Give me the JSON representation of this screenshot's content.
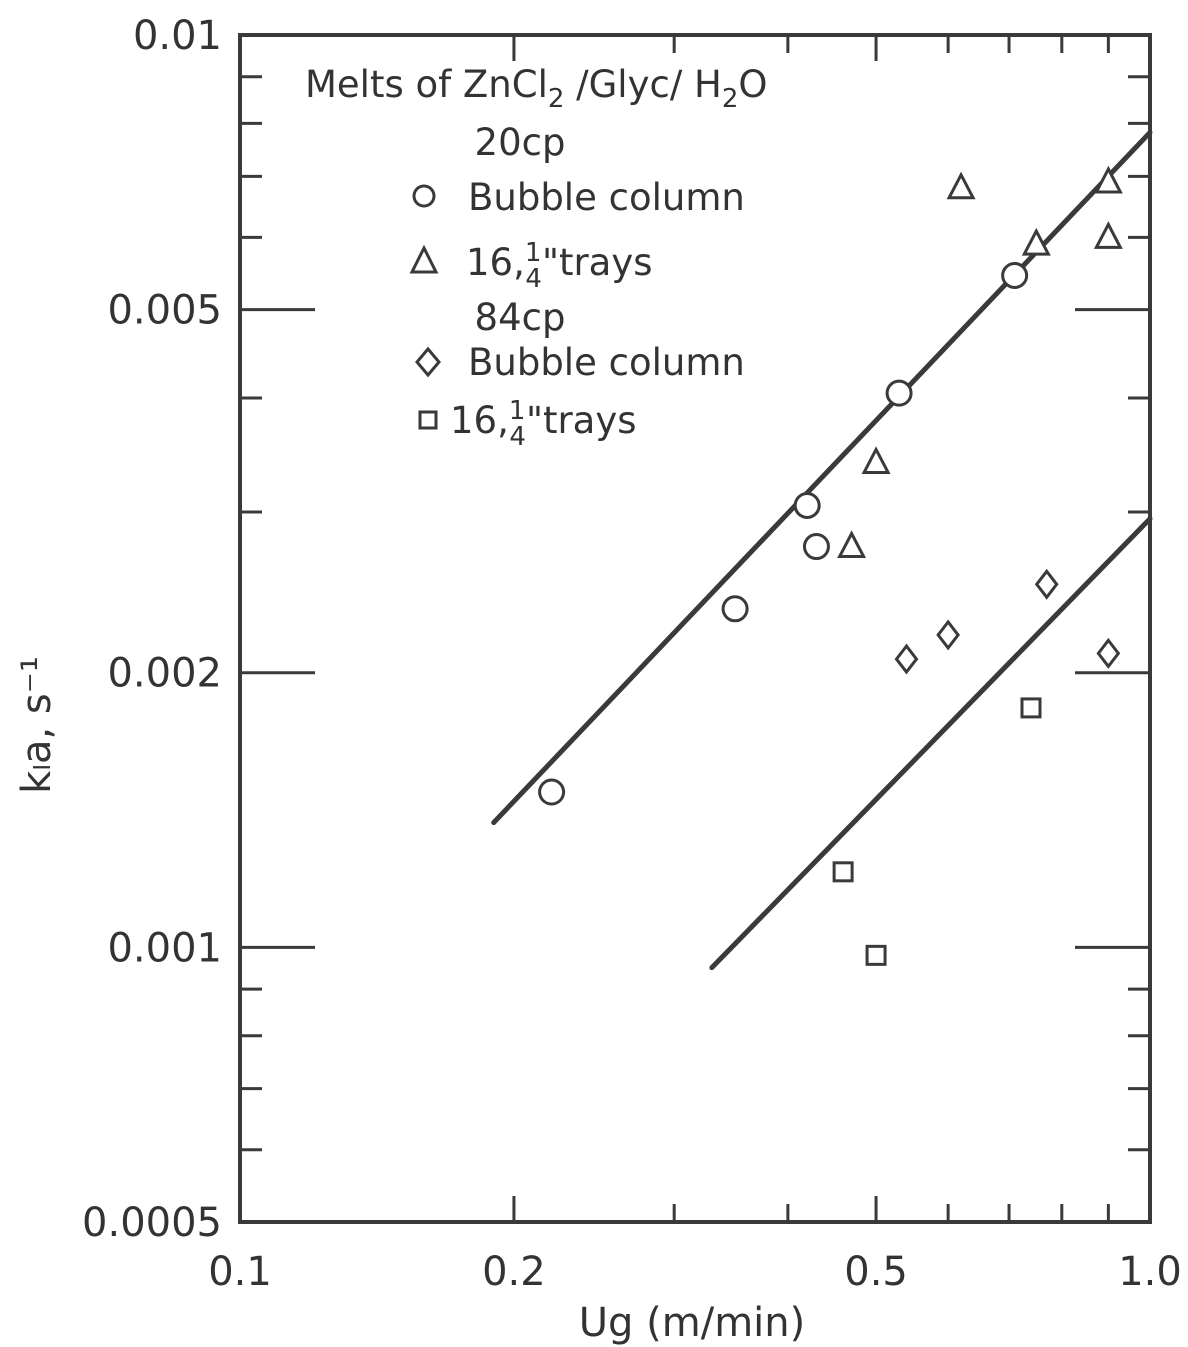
{
  "chart_data": {
    "type": "scatter",
    "title": "",
    "xlabel": "Ug (m/min)",
    "ylabel": "kₗa, s⁻¹",
    "xscale": "log",
    "yscale": "log",
    "xlim": [
      0.1,
      1.0
    ],
    "ylim": [
      0.0005,
      0.01
    ],
    "x_tick_labels": [
      {
        "value": 0.1,
        "label": "0.1"
      },
      {
        "value": 0.2,
        "label": "0.2"
      },
      {
        "value": 0.5,
        "label": "0.5"
      },
      {
        "value": 1.0,
        "label": "1.0"
      }
    ],
    "y_tick_labels": [
      {
        "value": 0.0005,
        "label": "0.0005"
      },
      {
        "value": 0.001,
        "label": "0.001"
      },
      {
        "value": 0.002,
        "label": "0.002"
      },
      {
        "value": 0.005,
        "label": "0.005"
      },
      {
        "value": 0.01,
        "label": "0.01"
      }
    ],
    "legend": {
      "placement": "top-left",
      "title_line1": "Melts of ZnCl",
      "title_sub1": "2",
      "title_line2": " /Glyc/ H",
      "title_sub2": "2",
      "title_line3": "O",
      "group1_label": "20cp",
      "group2_label": "84cp",
      "bubble_label": "Bubble column",
      "trays_prefix": "16,",
      "trays_frac_num": "1",
      "trays_frac_den": "4",
      "trays_suffix": "\"trays"
    },
    "series": [
      {
        "name": "20cp Bubble column",
        "marker": "circle",
        "points": [
          [
            0.22,
            0.00148
          ],
          [
            0.35,
            0.00235
          ],
          [
            0.42,
            0.00305
          ],
          [
            0.43,
            0.00275
          ],
          [
            0.53,
            0.00405
          ],
          [
            0.71,
            0.00545
          ]
        ]
      },
      {
        "name": "20cp 16,1/4\" trays",
        "marker": "triangle",
        "points": [
          [
            0.47,
            0.00275
          ],
          [
            0.5,
            0.0034
          ],
          [
            0.62,
            0.0068
          ],
          [
            0.75,
            0.0059
          ],
          [
            0.9,
            0.0069
          ],
          [
            0.9,
            0.006
          ]
        ]
      },
      {
        "name": "84cp Bubble column",
        "marker": "diamond",
        "points": [
          [
            0.54,
            0.00207
          ],
          [
            0.6,
            0.0022
          ],
          [
            0.77,
            0.0025
          ],
          [
            0.9,
            0.0021
          ]
        ]
      },
      {
        "name": "84cp 16,1/4\" trays",
        "marker": "square",
        "points": [
          [
            0.46,
            0.00121
          ],
          [
            0.5,
            0.00098
          ],
          [
            0.74,
            0.00183
          ]
        ]
      }
    ],
    "fit_lines": [
      {
        "name": "20cp fit",
        "x": [
          0.19,
          1.0
        ],
        "y": [
          0.00137,
          0.00782
        ]
      },
      {
        "name": "84cp fit",
        "x": [
          0.33,
          1.0
        ],
        "y": [
          0.00095,
          0.00295
        ]
      }
    ],
    "colors": {
      "ink": "#3a3a3a",
      "background": "#ffffff"
    }
  }
}
